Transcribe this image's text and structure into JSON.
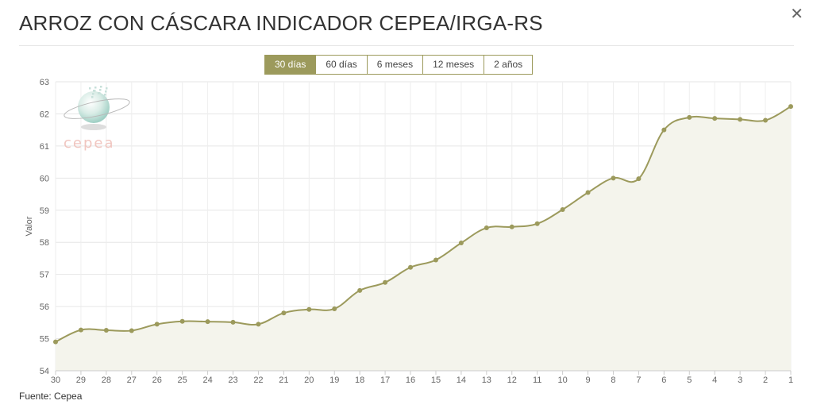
{
  "header": {
    "title": "ARROZ CON CÁSCARA INDICADOR CEPEA/IRGA-RS",
    "close_icon": "✕"
  },
  "range_tabs": [
    {
      "label": "30 días",
      "active": true
    },
    {
      "label": "60 días",
      "active": false
    },
    {
      "label": "6 meses",
      "active": false
    },
    {
      "label": "12 meses",
      "active": false
    },
    {
      "label": "2 años",
      "active": false
    }
  ],
  "logo": {
    "text": "cepea"
  },
  "source": "Fuente: Cepea",
  "colors": {
    "line": "#9c9a5c",
    "area": "#f4f4ec",
    "active_tab": "#9c9a5c",
    "logo_text": "#f0c6c0"
  },
  "chart_data": {
    "type": "area",
    "title": "ARROZ CON CÁSCARA INDICADOR CEPEA/IRGA-RS",
    "xlabel": "",
    "ylabel": "Valor",
    "ylim": [
      54,
      63
    ],
    "yticks": [
      54,
      55,
      56,
      57,
      58,
      59,
      60,
      61,
      62,
      63
    ],
    "categories": [
      "30",
      "29",
      "28",
      "27",
      "26",
      "25",
      "24",
      "23",
      "22",
      "21",
      "20",
      "19",
      "18",
      "17",
      "16",
      "15",
      "14",
      "13",
      "12",
      "11",
      "10",
      "9",
      "8",
      "7",
      "6",
      "5",
      "4",
      "3",
      "2",
      "1"
    ],
    "series": [
      {
        "name": "",
        "values": [
          54.9,
          55.27,
          55.26,
          55.25,
          55.45,
          55.54,
          55.53,
          55.51,
          55.45,
          55.8,
          55.91,
          55.93,
          56.5,
          56.75,
          57.22,
          57.45,
          57.98,
          58.45,
          58.48,
          58.58,
          59.02,
          59.55,
          60.0,
          59.98,
          61.5,
          61.89,
          61.86,
          61.83,
          61.8,
          62.23
        ]
      }
    ],
    "grid": true,
    "legend": "none"
  }
}
